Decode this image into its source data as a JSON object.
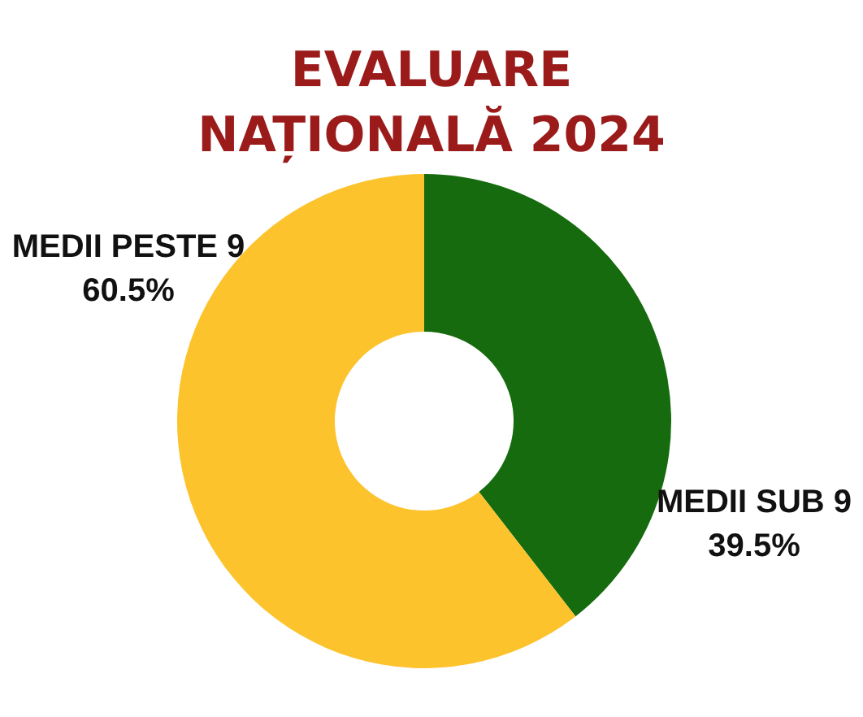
{
  "chart_data": {
    "type": "donut",
    "title": "EVALUARE\nNAȚIONALĂ 2024",
    "categories": [
      "MEDII SUB 9",
      "MEDII PESTE 9"
    ],
    "values": [
      39.5,
      60.5
    ],
    "colors": [
      "#156b0d",
      "#fcc32c"
    ],
    "value_labels": [
      "39.5%",
      "60.5%"
    ]
  }
}
